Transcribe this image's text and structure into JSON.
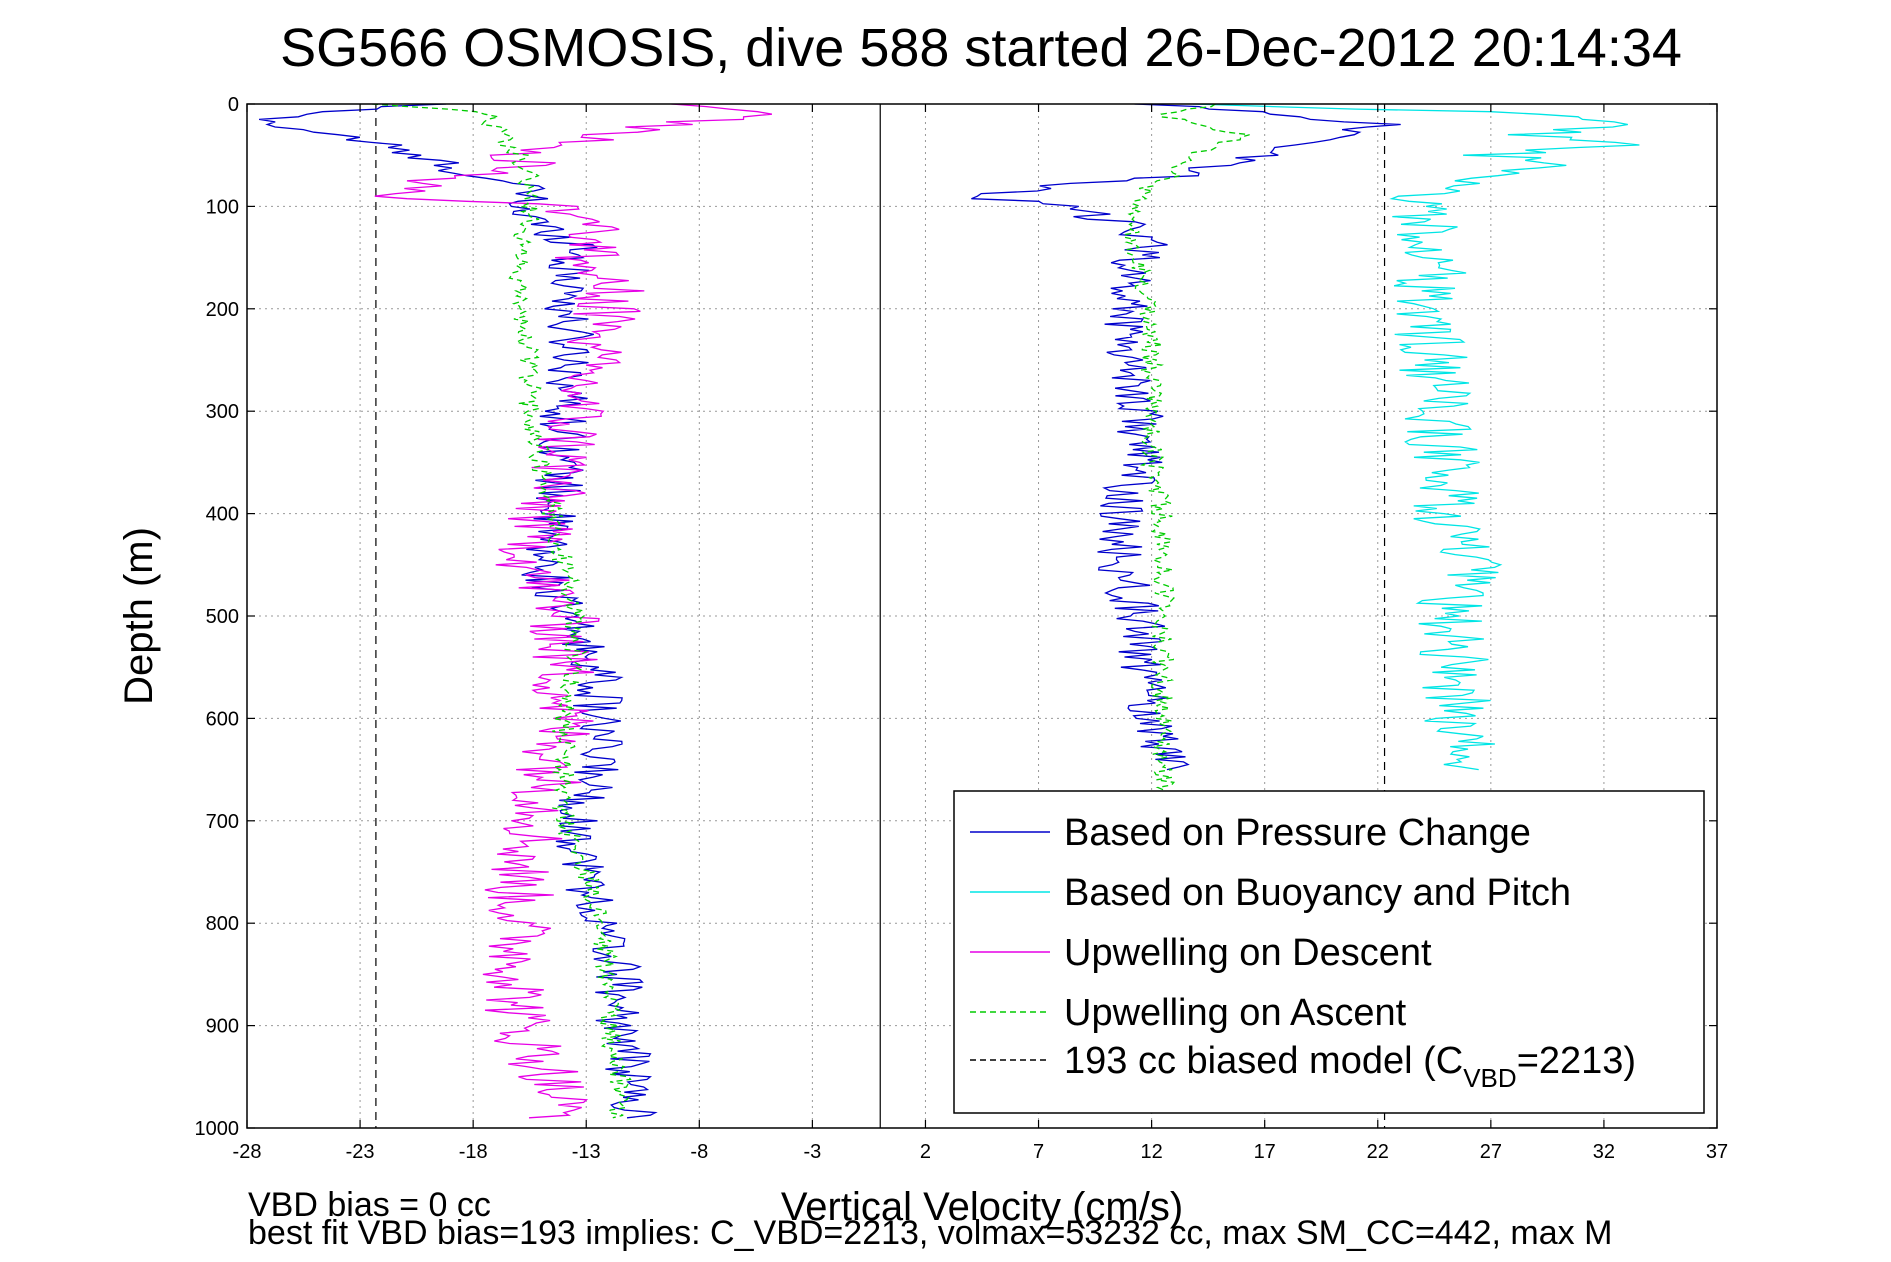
{
  "chart_data": {
    "type": "line",
    "title": "SG566 OSMOSIS, dive 588 started 26-Dec-2012 20:14:34",
    "xlabel": "Vertical Velocity (cm/s)",
    "ylabel": "Depth (m)",
    "xlim": [
      -28,
      37
    ],
    "ylim": [
      0,
      1000
    ],
    "y_reversed": true,
    "grid": true,
    "legend_position": "bottom-right",
    "x_ticks": [
      "-28",
      "-23",
      "-18",
      "-13",
      "-8",
      "-3",
      "2",
      "7",
      "12",
      "17",
      "22",
      "27",
      "32",
      "37"
    ],
    "y_ticks": [
      "0",
      "100",
      "200",
      "300",
      "400",
      "500",
      "600",
      "700",
      "800",
      "900",
      "1000"
    ],
    "reference_lines": {
      "zero_line_x": 0,
      "biased_model_descent_x": -22.3,
      "biased_model_ascent_x": 22.3
    },
    "legend": [
      {
        "label": "Based on Pressure Change",
        "color": "#0000cc",
        "dash": "solid"
      },
      {
        "label": "Based on Buoyancy and Pitch",
        "color": "#00e5e5",
        "dash": "solid"
      },
      {
        "label": "Upwelling on Descent",
        "color": "#e600e6",
        "dash": "solid"
      },
      {
        "label": "Upwelling on Ascent",
        "color": "#00cc00",
        "dash": "dashed"
      },
      {
        "label": "193 cc biased model (C",
        "sub": "VBD",
        "suffix": "=2213)",
        "color": "#000000",
        "dash": "dashed"
      }
    ],
    "series": [
      {
        "key": "pressure_descent",
        "color": "#0000cc",
        "dash": "solid",
        "depth": [
          0,
          10,
          20,
          30,
          40,
          50,
          60,
          70,
          80,
          90,
          100,
          120,
          140,
          160,
          180,
          200,
          250,
          300,
          350,
          400,
          450,
          500,
          550,
          600,
          650,
          700,
          750,
          800,
          850,
          900,
          950,
          990
        ],
        "values": [
          -20,
          -26,
          -27,
          -24,
          -22,
          -21,
          -19,
          -18,
          -16,
          -15.5,
          -16,
          -15,
          -13,
          -14,
          -13.5,
          -14,
          -13.5,
          -14,
          -14,
          -14.5,
          -15,
          -14,
          -12.5,
          -12.5,
          -12.5,
          -13.5,
          -13,
          -12.5,
          -11.5,
          -11.5,
          -11,
          -11
        ]
      },
      {
        "key": "pressure_ascent",
        "color": "#0000cc",
        "dash": "solid",
        "depth": [
          0,
          10,
          20,
          30,
          40,
          50,
          60,
          70,
          80,
          90,
          100,
          120,
          140,
          160,
          180,
          200,
          250,
          300,
          350,
          400,
          450,
          500,
          550,
          600,
          650
        ],
        "values": [
          12,
          18,
          22,
          20,
          19,
          17,
          15,
          13,
          8,
          4,
          8,
          11,
          12,
          11,
          11,
          11,
          11,
          11.5,
          11.5,
          10.5,
          10.5,
          11.5,
          11.5,
          12,
          13
        ]
      },
      {
        "key": "buoyancy_ascent",
        "color": "#00e5e5",
        "dash": "solid",
        "depth": [
          0,
          10,
          20,
          30,
          40,
          50,
          60,
          70,
          80,
          90,
          100,
          120,
          140,
          160,
          180,
          200,
          250,
          300,
          350,
          400,
          450,
          500,
          550,
          600,
          650
        ],
        "values": [
          14,
          30,
          34,
          28,
          32,
          27,
          30,
          26,
          25,
          24,
          24,
          24,
          24.5,
          24.5,
          24,
          24,
          24.5,
          24.5,
          25,
          25,
          26,
          25,
          25.5,
          25.5,
          26
        ]
      },
      {
        "key": "upwelling_descent",
        "color": "#e600e6",
        "dash": "solid",
        "depth": [
          0,
          10,
          20,
          30,
          40,
          50,
          60,
          70,
          80,
          90,
          100,
          120,
          140,
          160,
          180,
          200,
          250,
          300,
          350,
          400,
          450,
          500,
          550,
          600,
          650,
          700,
          750,
          800,
          850,
          900,
          950,
          990
        ],
        "values": [
          -10,
          -5,
          -9,
          -12,
          -14,
          -16,
          -15,
          -19,
          -20,
          -22,
          -14,
          -12,
          -13,
          -13,
          -12,
          -12,
          -13,
          -13.5,
          -14,
          -15,
          -15.5,
          -14,
          -14,
          -14,
          -14.5,
          -15,
          -16,
          -16,
          -16,
          -16,
          -14.5,
          -14
        ]
      },
      {
        "key": "upwelling_ascent",
        "color": "#00cc00",
        "dash": "dashed",
        "depth": [
          0,
          10,
          20,
          30,
          40,
          50,
          60,
          70,
          80,
          90,
          100,
          120,
          140,
          160,
          180,
          200,
          250,
          300,
          350,
          400,
          450,
          500,
          550,
          600,
          650,
          700,
          750,
          800,
          850,
          900,
          950,
          990
        ],
        "values": [
          -22,
          -17,
          -17.5,
          -16.5,
          -16.5,
          -16,
          -16,
          -15.5,
          -15.5,
          -15.5,
          -15.5,
          -15.5,
          -16,
          -16,
          -16,
          -16,
          -15.5,
          -15.5,
          -15,
          -14.5,
          -14,
          -13.5,
          -13.5,
          -14,
          -14,
          -14,
          -13,
          -12.5,
          -12,
          -12,
          -11.5,
          -11.5
        ]
      },
      {
        "key": "upwelling_ascent_right",
        "color": "#00cc00",
        "dash": "dashed",
        "depth": [
          0,
          10,
          20,
          30,
          40,
          50,
          60,
          70,
          80,
          90,
          100,
          120,
          140,
          160,
          180,
          200,
          250,
          300,
          350,
          400,
          450,
          500,
          550,
          600,
          650,
          700
        ],
        "values": [
          15,
          12,
          14,
          16,
          15,
          14,
          13,
          13,
          12,
          11.5,
          11,
          11,
          11,
          11.5,
          11.5,
          12,
          12,
          12,
          12,
          12.5,
          12.5,
          12.5,
          12.5,
          12.5,
          12.5,
          13
        ]
      }
    ]
  },
  "footer": {
    "line1": "VBD bias = 0 cc",
    "line2": "best fit VBD bias=193 implies: C_VBD=2213, volmax=53232 cc, max SM_CC=442, max M"
  }
}
